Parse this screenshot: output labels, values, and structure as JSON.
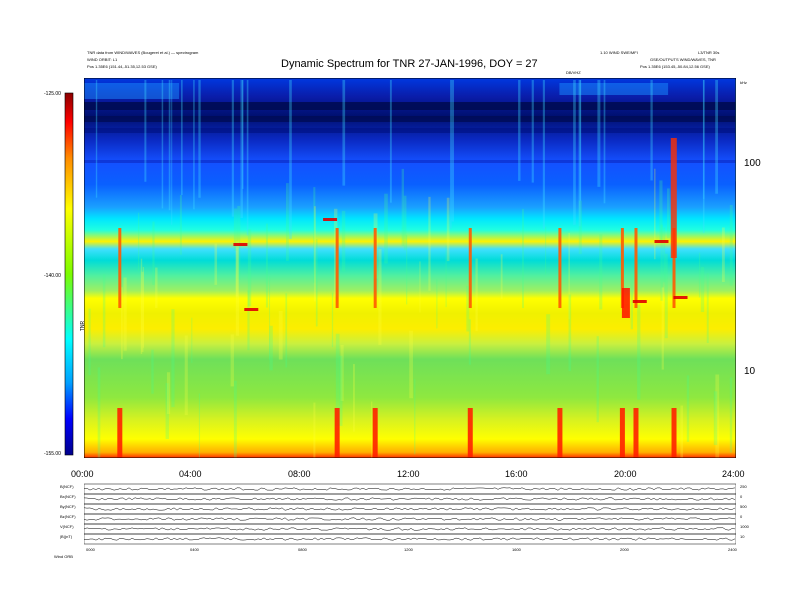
{
  "header": {
    "top_left_line1": "TNR data from WIND/WAVES (Bougeret et al.) — spectrogram",
    "top_left_line2": "WIND ORBIT: L1",
    "top_left_line3": "Pos    1.35E6 (151.44,-51.35,12.53 GSE)",
    "top_right_line1": "1.10 WIND SWE/MFI",
    "top_right_line2": "GSE/OUTPUTS WIND/WAVES, TNR",
    "top_right_line3": "Pos    1.35E6 (153.45,-50.84,12.56 GSE)",
    "top_right_corner": "L3/TNR 30s",
    "center_small": "DB/VHZ"
  },
  "chart_data": {
    "type": "heatmap",
    "title": "Dynamic Spectrum for TNR 27-JAN-1996, DOY = 27",
    "x": {
      "ticks": [
        "00:00",
        "04:00",
        "08:00",
        "12:00",
        "16:00",
        "20:00",
        "24:00"
      ],
      "range_hours": [
        0,
        24
      ]
    },
    "y_right": {
      "ticks": [
        "100",
        "10"
      ],
      "unit": "kHz",
      "scale": "log"
    },
    "colorbar": {
      "ticks": [
        "-125.00",
        "-140.00",
        "-155.00"
      ],
      "label": "TNR",
      "range": [
        -155,
        -125
      ]
    },
    "colormap": [
      "#00008b",
      "#0000ff",
      "#00c8ff",
      "#00ffff",
      "#7cfc00",
      "#ffff00",
      "#ff8c00",
      "#ff0000",
      "#8b0000"
    ],
    "bursts_hours": [
      1.3,
      9.3,
      10.7,
      14.2,
      17.5,
      19.8,
      20.3,
      21.7
    ],
    "bands": [
      {
        "name": "dark-blue",
        "color": "#0a1ca8"
      },
      {
        "name": "cyan",
        "color": "#00e5ff"
      },
      {
        "name": "yellow-band",
        "color": "#fbf300"
      },
      {
        "name": "green",
        "color": "#6ee05a"
      },
      {
        "name": "yellow-low",
        "color": "#ffff00"
      },
      {
        "name": "red-floor",
        "color": "#ff2a00"
      }
    ]
  },
  "panels": {
    "rows": [
      {
        "label": "B(NCF)",
        "right": "250"
      },
      {
        "label": "Bx(NCF)",
        "right": "0"
      },
      {
        "label": "By(NCF)",
        "right": "500"
      },
      {
        "label": "Bz(NCF)",
        "right": "0"
      },
      {
        "label": "V(NCF)",
        "right": "1000"
      },
      {
        "label": "|B|(nT)",
        "right": "10"
      }
    ],
    "x_ticks": [
      "0000",
      "0400",
      "0800",
      "1200",
      "1600",
      "2000",
      "2400"
    ],
    "footer": "Wind    ORB"
  }
}
